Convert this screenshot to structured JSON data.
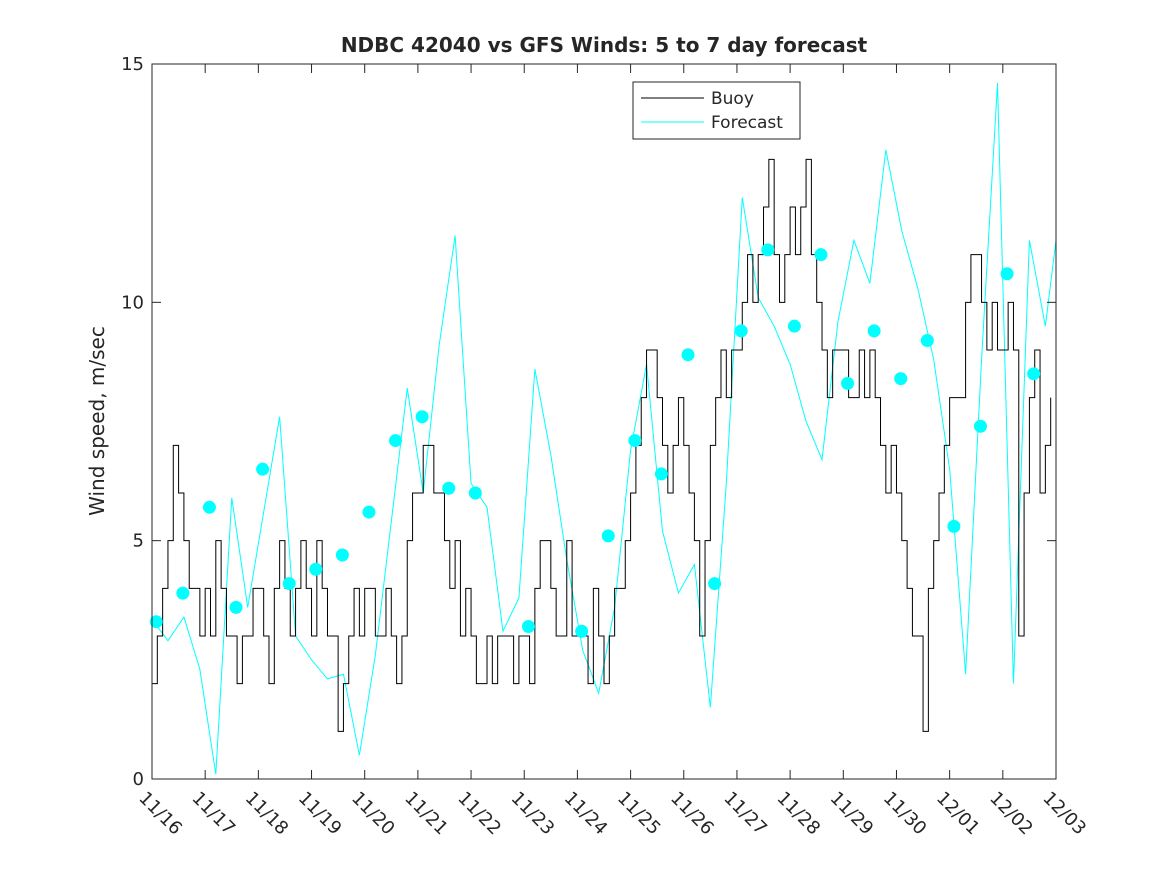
{
  "chart_data": {
    "type": "line",
    "title": "NDBC 42040 vs GFS Winds: 5 to 7 day forecast",
    "xlabel": "",
    "ylabel": "Wind speed, m/sec",
    "xlim": [
      0,
      17
    ],
    "ylim": [
      0,
      15
    ],
    "yticks": [
      0,
      5,
      10,
      15
    ],
    "ytick_labels": [
      "0",
      "5",
      "10",
      "15"
    ],
    "xtick_labels": [
      "11/16",
      "11/17",
      "11/18",
      "11/19",
      "11/20",
      "11/21",
      "11/22",
      "11/23",
      "11/24",
      "11/25",
      "11/26",
      "11/27",
      "11/28",
      "11/29",
      "11/30",
      "12/01",
      "12/02",
      "12/03"
    ],
    "legend": {
      "position": "top-center",
      "entries": [
        "Buoy",
        "Forecast"
      ]
    },
    "colors": {
      "buoy": "#000000",
      "forecast": "#00ffff",
      "axis": "#262626"
    },
    "series": [
      {
        "name": "Buoy",
        "note": "day offset from 11/16 vs wind speed, m/sec",
        "x": [
          0,
          0.1,
          0.2,
          0.3,
          0.4,
          0.5,
          0.6,
          0.7,
          0.8,
          0.9,
          1.0,
          1.1,
          1.2,
          1.3,
          1.4,
          1.5,
          1.6,
          1.7,
          1.8,
          1.9,
          2.0,
          2.1,
          2.2,
          2.3,
          2.4,
          2.5,
          2.6,
          2.7,
          2.8,
          2.9,
          3.0,
          3.1,
          3.2,
          3.3,
          3.4,
          3.5,
          3.6,
          3.7,
          3.8,
          3.9,
          4.0,
          4.1,
          4.2,
          4.3,
          4.4,
          4.5,
          4.6,
          4.7,
          4.8,
          4.9,
          5.0,
          5.1,
          5.2,
          5.3,
          5.4,
          5.5,
          5.6,
          5.7,
          5.8,
          5.9,
          6.0,
          6.1,
          6.2,
          6.3,
          6.4,
          6.5,
          6.6,
          6.7,
          6.8,
          6.9,
          7.0,
          7.1,
          7.2,
          7.3,
          7.4,
          7.5,
          7.6,
          7.7,
          7.8,
          7.9,
          8.0,
          8.1,
          8.2,
          8.3,
          8.4,
          8.5,
          8.6,
          8.7,
          8.8,
          8.9,
          9.0,
          9.1,
          9.2,
          9.3,
          9.4,
          9.5,
          9.6,
          9.7,
          9.8,
          9.9,
          10.0,
          10.1,
          10.2,
          10.3,
          10.4,
          10.5,
          10.6,
          10.7,
          10.8,
          10.9,
          11.0,
          11.1,
          11.2,
          11.3,
          11.4,
          11.5,
          11.6,
          11.7,
          11.8,
          11.9,
          12.0,
          12.1,
          12.2,
          12.3,
          12.4,
          12.5,
          12.6,
          12.7,
          12.8,
          12.9,
          13.0,
          13.1,
          13.2,
          13.3,
          13.4,
          13.5,
          13.6,
          13.7,
          13.8,
          13.9,
          14.0,
          14.1,
          14.2,
          14.3,
          14.4,
          14.5,
          14.6,
          14.7,
          14.8,
          14.9,
          15.0,
          15.1,
          15.2,
          15.3,
          15.4,
          15.5,
          15.6,
          15.7,
          15.8,
          15.9,
          16.0,
          16.1,
          16.2,
          16.3,
          16.4,
          16.5,
          16.6,
          16.7,
          16.8,
          16.9
        ],
        "y": [
          2,
          3,
          4,
          5,
          7,
          6,
          5,
          4,
          4,
          3,
          4,
          3,
          5,
          4,
          3,
          3,
          2,
          3,
          3,
          4,
          4,
          3,
          2,
          4,
          5,
          4,
          3,
          4,
          5,
          4,
          3,
          5,
          4,
          3,
          3,
          1,
          2,
          3,
          4,
          3,
          4,
          4,
          3,
          3,
          4,
          3,
          2,
          3,
          5,
          6,
          6,
          7,
          7,
          6,
          6,
          5,
          4,
          5,
          3,
          4,
          3,
          2,
          2,
          3,
          2,
          3,
          3,
          3,
          2,
          3,
          3,
          2,
          4,
          5,
          5,
          4,
          3,
          3,
          5,
          3,
          3,
          3,
          2,
          4,
          3,
          2,
          3,
          4,
          4,
          5,
          6,
          7,
          8,
          9,
          9,
          8,
          7,
          6,
          7,
          8,
          7,
          6,
          5,
          3,
          5,
          7,
          8,
          9,
          8,
          9,
          9,
          10,
          11,
          10,
          11,
          12,
          13,
          11,
          10,
          11,
          12,
          11,
          12,
          13,
          11,
          10,
          9,
          8,
          9,
          9,
          9,
          8,
          8,
          9,
          8,
          9,
          8,
          7,
          6,
          7,
          6,
          5,
          4,
          3,
          3,
          1,
          4,
          5,
          6,
          7,
          8,
          8,
          8,
          10,
          11,
          11,
          10,
          9,
          10,
          9,
          9,
          10,
          9,
          3,
          6,
          8,
          9,
          6,
          7,
          8
        ],
        "markers": []
      },
      {
        "name": "Forecast",
        "note": "overlapping forecast runs (day offset, m/sec); markers = forecast initial points",
        "x": [
          0.1,
          0.3,
          0.6,
          0.9,
          1.2,
          1.5,
          1.8,
          2.1,
          2.4,
          2.7,
          3.0,
          3.3,
          3.6,
          3.9,
          4.2,
          4.5,
          4.8,
          5.1,
          5.4,
          5.7,
          6.0,
          6.3,
          6.6,
          6.9,
          7.2,
          7.5,
          7.8,
          8.1,
          8.4,
          8.7,
          9.0,
          9.3,
          9.6,
          9.9,
          10.2,
          10.5,
          10.8,
          11.1,
          11.4,
          11.7,
          12.0,
          12.3,
          12.6,
          12.9,
          13.2,
          13.5,
          13.8,
          14.1,
          14.4,
          14.7,
          15.0,
          15.3,
          15.6,
          15.9,
          16.2,
          16.5,
          16.8,
          17.0
        ],
        "y": [
          3.2,
          2.9,
          3.4,
          2.3,
          0.1,
          5.9,
          3.6,
          5.6,
          7.6,
          3.0,
          2.5,
          2.1,
          2.2,
          0.5,
          2.6,
          5.4,
          8.2,
          6.0,
          9.1,
          11.4,
          6.2,
          5.7,
          3.1,
          3.8,
          8.6,
          6.8,
          4.6,
          2.7,
          1.8,
          3.6,
          6.9,
          8.7,
          5.2,
          3.9,
          4.5,
          1.5,
          6.2,
          12.2,
          10.1,
          9.5,
          8.7,
          7.5,
          6.7,
          9.6,
          11.3,
          10.4,
          13.2,
          11.5,
          10.3,
          8.8,
          6.5,
          2.2,
          8.8,
          14.6,
          2.0,
          11.3,
          9.5,
          11.3
        ],
        "markers": [
          {
            "x": 0.08,
            "y": 3.3
          },
          {
            "x": 0.58,
            "y": 3.9
          },
          {
            "x": 1.08,
            "y": 5.7
          },
          {
            "x": 1.58,
            "y": 3.6
          },
          {
            "x": 2.08,
            "y": 6.5
          },
          {
            "x": 2.58,
            "y": 4.1
          },
          {
            "x": 3.08,
            "y": 4.4
          },
          {
            "x": 3.58,
            "y": 4.7
          },
          {
            "x": 4.08,
            "y": 5.6
          },
          {
            "x": 4.58,
            "y": 7.1
          },
          {
            "x": 5.08,
            "y": 7.6
          },
          {
            "x": 5.58,
            "y": 6.1
          },
          {
            "x": 6.08,
            "y": 6.0
          },
          {
            "x": 7.08,
            "y": 3.2
          },
          {
            "x": 8.08,
            "y": 3.1
          },
          {
            "x": 8.58,
            "y": 5.1
          },
          {
            "x": 9.08,
            "y": 7.1
          },
          {
            "x": 9.58,
            "y": 6.4
          },
          {
            "x": 10.08,
            "y": 8.9
          },
          {
            "x": 10.58,
            "y": 4.1
          },
          {
            "x": 11.08,
            "y": 9.4
          },
          {
            "x": 11.58,
            "y": 11.1
          },
          {
            "x": 12.08,
            "y": 9.5
          },
          {
            "x": 12.58,
            "y": 11.0
          },
          {
            "x": 13.08,
            "y": 8.3
          },
          {
            "x": 13.58,
            "y": 9.4
          },
          {
            "x": 14.08,
            "y": 8.4
          },
          {
            "x": 14.58,
            "y": 9.2
          },
          {
            "x": 15.08,
            "y": 5.3
          },
          {
            "x": 15.58,
            "y": 7.4
          },
          {
            "x": 16.08,
            "y": 10.6
          },
          {
            "x": 16.58,
            "y": 8.5
          }
        ]
      }
    ]
  }
}
